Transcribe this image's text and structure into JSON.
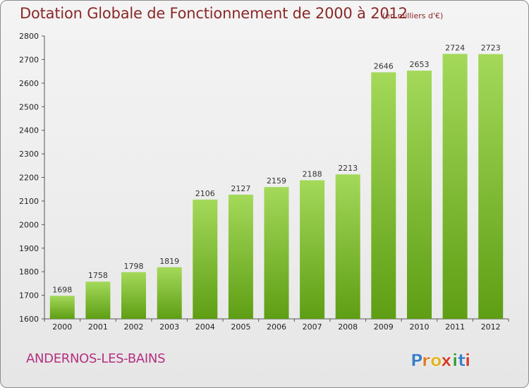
{
  "title": "Dotation Globale de Fonctionnement de 2000 à 2012",
  "subtitle": "(en milliers d'€)",
  "commune": "ANDERNOS-LES-BAINS",
  "logo": {
    "text": "Proxiti",
    "letters": [
      "P",
      "r",
      "o",
      "x",
      "i",
      "t",
      "i"
    ],
    "colors": [
      "#3a7fc4",
      "#e07a20",
      "#e2b21c",
      "#d43c2a",
      "#3a9a3a",
      "#3a7fc4",
      "#d43c2a"
    ]
  },
  "colors": {
    "bar_light": "#a4d95a",
    "bar_dark": "#5e9e14",
    "title": "#8a2828",
    "commune": "#b43080"
  },
  "chart_data": {
    "type": "bar",
    "categories": [
      "2000",
      "2001",
      "2002",
      "2003",
      "2004",
      "2005",
      "2006",
      "2007",
      "2008",
      "2009",
      "2010",
      "2011",
      "2012"
    ],
    "values": [
      1698,
      1758,
      1798,
      1819,
      2106,
      2127,
      2159,
      2188,
      2213,
      2646,
      2653,
      2724,
      2723
    ],
    "title": "Dotation Globale de Fonctionnement de 2000 à 2012",
    "ylabel": "",
    "xlabel": "",
    "ylim": [
      1600,
      2800
    ],
    "yticks": [
      1600,
      1700,
      1800,
      1900,
      2000,
      2100,
      2200,
      2300,
      2400,
      2500,
      2600,
      2700,
      2800
    ],
    "grid": false,
    "data_labels": true
  }
}
